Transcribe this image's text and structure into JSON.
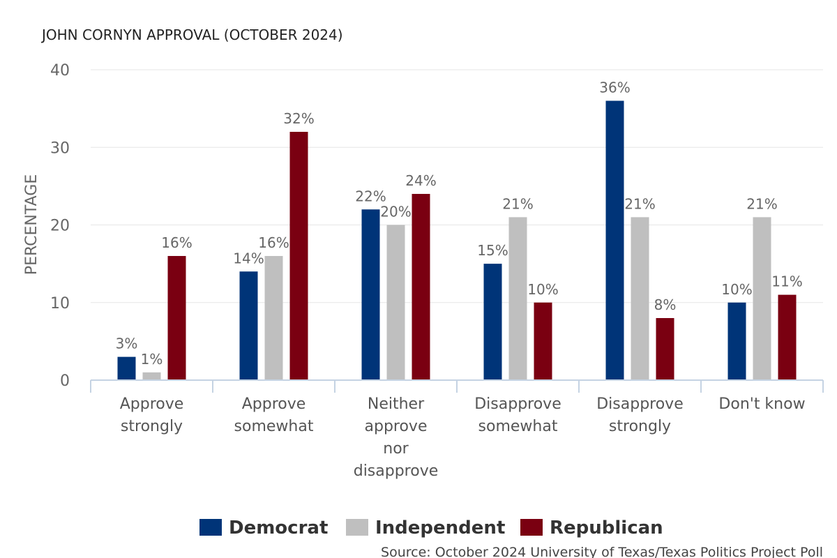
{
  "chart_data": {
    "type": "bar",
    "title": "JOHN CORNYN APPROVAL (OCTOBER 2024)",
    "xlabel": "",
    "ylabel": "PERCENTAGE",
    "ylim": [
      0,
      40
    ],
    "yticks": [
      0,
      10,
      20,
      30,
      40
    ],
    "grid": true,
    "legend_position": "bottom",
    "categories": [
      [
        "Approve",
        "strongly"
      ],
      [
        "Approve",
        "somewhat"
      ],
      [
        "Neither",
        "approve",
        "nor",
        "disapprove"
      ],
      [
        "Disapprove",
        "somewhat"
      ],
      [
        "Disapprove",
        "strongly"
      ],
      [
        "Don't know"
      ]
    ],
    "series": [
      {
        "name": "Democrat",
        "color": "#003478",
        "values": [
          3,
          14,
          22,
          15,
          36,
          10
        ]
      },
      {
        "name": "Independent",
        "color": "#bfbfbf",
        "values": [
          1,
          16,
          20,
          21,
          21,
          21
        ]
      },
      {
        "name": "Republican",
        "color": "#7a0011",
        "values": [
          16,
          32,
          24,
          10,
          8,
          11
        ]
      }
    ],
    "value_suffix": "%",
    "source": "Source: October 2024 University of Texas/Texas Politics Project Poll"
  }
}
